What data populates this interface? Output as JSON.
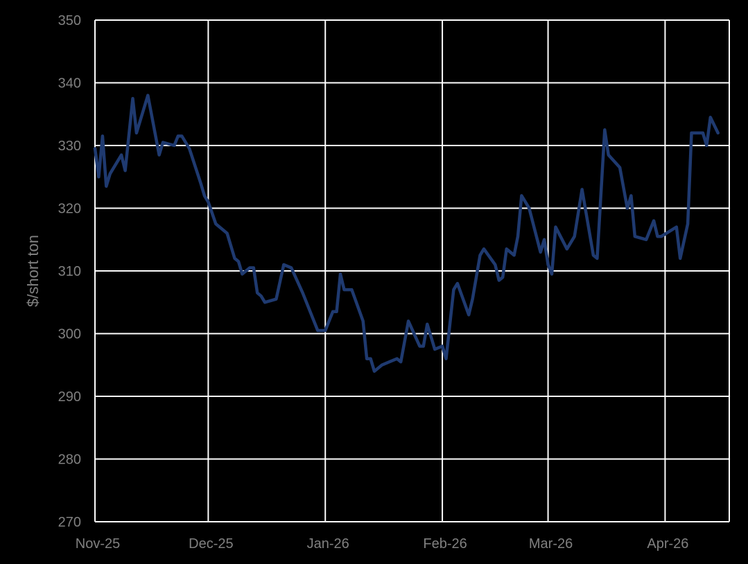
{
  "chart_data": {
    "type": "line",
    "title": "",
    "xlabel": "",
    "ylabel": "$/short ton",
    "ylim": [
      270,
      350
    ],
    "yticks": [
      270,
      280,
      290,
      300,
      310,
      320,
      330,
      340,
      350
    ],
    "xlim": [
      "2025-11-01",
      "2026-04-18"
    ],
    "xticks": [
      {
        "label": "Nov-25",
        "date": "2025-11-01"
      },
      {
        "label": "Dec-25",
        "date": "2025-12-01"
      },
      {
        "label": "Jan-26",
        "date": "2026-01-01"
      },
      {
        "label": "Feb-26",
        "date": "2026-02-01"
      },
      {
        "label": "Mar-26",
        "date": "2026-03-01"
      },
      {
        "label": "Apr-26",
        "date": "2026-04-01"
      }
    ],
    "grid": true,
    "colors": {
      "series": "#1f3a70",
      "grid": "#ffffff",
      "text": "#808080",
      "background": "#000000"
    },
    "series": [
      {
        "values": [
          [
            "2025-11-01",
            329.5
          ],
          [
            "2025-11-02",
            325
          ],
          [
            "2025-11-03",
            331.5
          ],
          [
            "2025-11-04",
            323.5
          ],
          [
            "2025-11-05",
            325.5
          ],
          [
            "2025-11-08",
            328.5
          ],
          [
            "2025-11-09",
            326
          ],
          [
            "2025-11-11",
            337.5
          ],
          [
            "2025-11-12",
            332
          ],
          [
            "2025-11-15",
            338
          ],
          [
            "2025-11-18",
            328.5
          ],
          [
            "2025-11-19",
            330.5
          ],
          [
            "2025-11-22",
            330
          ],
          [
            "2025-11-23",
            331.5
          ],
          [
            "2025-11-24",
            331.5
          ],
          [
            "2025-11-26",
            329.5
          ],
          [
            "2025-11-29",
            324
          ],
          [
            "2025-11-30",
            322
          ],
          [
            "2025-12-01",
            321
          ],
          [
            "2025-12-03",
            317.5
          ],
          [
            "2025-12-06",
            316
          ],
          [
            "2025-12-08",
            312
          ],
          [
            "2025-12-09",
            311.5
          ],
          [
            "2025-12-10",
            309.5
          ],
          [
            "2025-12-12",
            310.5
          ],
          [
            "2025-12-13",
            310.5
          ],
          [
            "2025-12-14",
            306.5
          ],
          [
            "2025-12-15",
            306
          ],
          [
            "2025-12-16",
            305
          ],
          [
            "2025-12-19",
            305.5
          ],
          [
            "2025-12-21",
            311
          ],
          [
            "2025-12-23",
            310.5
          ],
          [
            "2025-12-26",
            306.5
          ],
          [
            "2025-12-29",
            302
          ],
          [
            "2025-12-30",
            300.5
          ],
          [
            "2026-01-01",
            300.5
          ],
          [
            "2026-01-03",
            303.5
          ],
          [
            "2026-01-04",
            303.5
          ],
          [
            "2026-01-05",
            309.5
          ],
          [
            "2026-01-06",
            307
          ],
          [
            "2026-01-08",
            307
          ],
          [
            "2026-01-11",
            302
          ],
          [
            "2026-01-12",
            296
          ],
          [
            "2026-01-13",
            296
          ],
          [
            "2026-01-14",
            294
          ],
          [
            "2026-01-16",
            295
          ],
          [
            "2026-01-18",
            295.5
          ],
          [
            "2026-01-20",
            296
          ],
          [
            "2026-01-21",
            295.5
          ],
          [
            "2026-01-23",
            302
          ],
          [
            "2026-01-26",
            298
          ],
          [
            "2026-01-27",
            298
          ],
          [
            "2026-01-28",
            301.5
          ],
          [
            "2026-01-30",
            297.5
          ],
          [
            "2026-02-01",
            298
          ],
          [
            "2026-02-02",
            296
          ],
          [
            "2026-02-04",
            307
          ],
          [
            "2026-02-05",
            308
          ],
          [
            "2026-02-08",
            303
          ],
          [
            "2026-02-09",
            305.5
          ],
          [
            "2026-02-11",
            312.5
          ],
          [
            "2026-02-12",
            313.5
          ],
          [
            "2026-02-15",
            311
          ],
          [
            "2026-02-16",
            308.5
          ],
          [
            "2026-02-17",
            309
          ],
          [
            "2026-02-18",
            313.5
          ],
          [
            "2026-02-20",
            312.5
          ],
          [
            "2026-02-21",
            315.5
          ],
          [
            "2026-02-22",
            322
          ],
          [
            "2026-02-24",
            320
          ],
          [
            "2026-02-27",
            313
          ],
          [
            "2026-02-28",
            315
          ],
          [
            "2026-03-01",
            311
          ],
          [
            "2026-03-02",
            309.5
          ],
          [
            "2026-03-03",
            317
          ],
          [
            "2026-03-06",
            313.5
          ],
          [
            "2026-03-08",
            315.5
          ],
          [
            "2026-03-10",
            323
          ],
          [
            "2026-03-13",
            312.5
          ],
          [
            "2026-03-14",
            312
          ],
          [
            "2026-03-16",
            332.5
          ],
          [
            "2026-03-17",
            328.5
          ],
          [
            "2026-03-20",
            326.5
          ],
          [
            "2026-03-22",
            320
          ],
          [
            "2026-03-23",
            322
          ],
          [
            "2026-03-24",
            315.5
          ],
          [
            "2026-03-27",
            315
          ],
          [
            "2026-03-29",
            318
          ],
          [
            "2026-03-30",
            315.5
          ],
          [
            "2026-03-31",
            315.5
          ],
          [
            "2026-04-04",
            317
          ],
          [
            "2026-04-05",
            312
          ],
          [
            "2026-04-07",
            317.5
          ],
          [
            "2026-04-08",
            332
          ],
          [
            "2026-04-11",
            332
          ],
          [
            "2026-04-12",
            330
          ],
          [
            "2026-04-13",
            334.5
          ],
          [
            "2026-04-15",
            332
          ]
        ]
      }
    ]
  }
}
